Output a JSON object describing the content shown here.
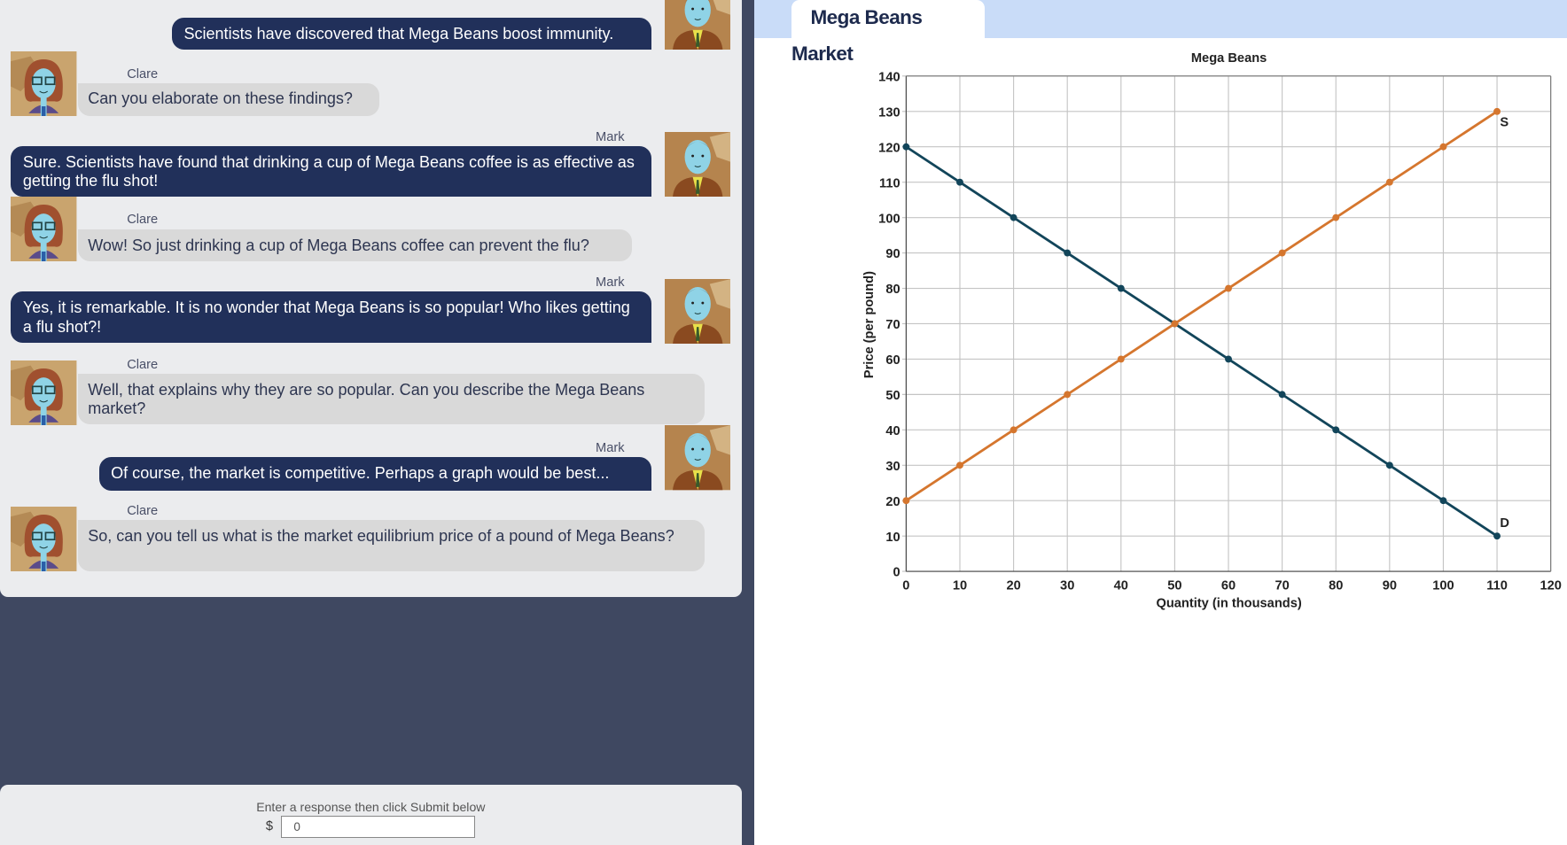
{
  "chat": {
    "messages": [
      {
        "speaker": "Mark",
        "show_name": false,
        "text": "Scientists have discovered that Mega Beans boost immunity."
      },
      {
        "speaker": "Clare",
        "show_name": true,
        "text": "Can you elaborate on these findings?"
      },
      {
        "speaker": "Mark",
        "show_name": true,
        "text": "Sure. Scientists have found that drinking a cup of Mega Beans coffee is as effective as getting the flu shot!"
      },
      {
        "speaker": "Clare",
        "show_name": true,
        "text": "Wow! So just drinking a cup of Mega Beans coffee can prevent the flu?"
      },
      {
        "speaker": "Mark",
        "show_name": true,
        "text": "Yes, it is remarkable. It is no wonder that Mega Beans is so popular! Who likes getting a flu shot?!"
      },
      {
        "speaker": "Clare",
        "show_name": true,
        "text": "Well, that explains why they are so popular. Can you describe the Mega Beans market?"
      },
      {
        "speaker": "Mark",
        "show_name": true,
        "text": "Of course, the market is competitive. Perhaps a graph would be best..."
      },
      {
        "speaker": "Clare",
        "show_name": true,
        "text": "So, can you tell us what is the market equilibrium price of a pound of Mega Beans?"
      }
    ]
  },
  "response": {
    "prompt": "Enter a response then click Submit below",
    "currency": "$",
    "value": "0"
  },
  "tab": {
    "label": "Mega Beans Market"
  },
  "colors": {
    "panel": "#3f4861",
    "mark_bubble": "#21305a",
    "clare_bubble": "#d9d9d9",
    "tab_bar": "#c9dcf8",
    "demand": "#12455a",
    "supply": "#d5762e"
  },
  "chart_data": {
    "type": "line",
    "title": "Mega Beans",
    "xlabel": "Quantity (in thousands)",
    "ylabel": "Price (per pound)",
    "xlim": [
      0,
      120
    ],
    "ylim": [
      0,
      140
    ],
    "xticks": [
      0,
      10,
      20,
      30,
      40,
      50,
      60,
      70,
      80,
      90,
      100,
      110,
      120
    ],
    "yticks": [
      0,
      10,
      20,
      30,
      40,
      50,
      60,
      70,
      80,
      90,
      100,
      110,
      120,
      130,
      140
    ],
    "grid": true,
    "series": [
      {
        "name": "D",
        "color": "#12455a",
        "x": [
          0,
          10,
          20,
          30,
          40,
          50,
          60,
          70,
          80,
          90,
          100,
          110
        ],
        "y": [
          120,
          110,
          100,
          90,
          80,
          70,
          60,
          50,
          40,
          30,
          20,
          10
        ]
      },
      {
        "name": "S",
        "color": "#d5762e",
        "x": [
          0,
          10,
          20,
          30,
          40,
          50,
          60,
          70,
          80,
          90,
          100,
          110
        ],
        "y": [
          20,
          30,
          40,
          50,
          60,
          70,
          80,
          90,
          100,
          110,
          120,
          130
        ]
      }
    ]
  }
}
